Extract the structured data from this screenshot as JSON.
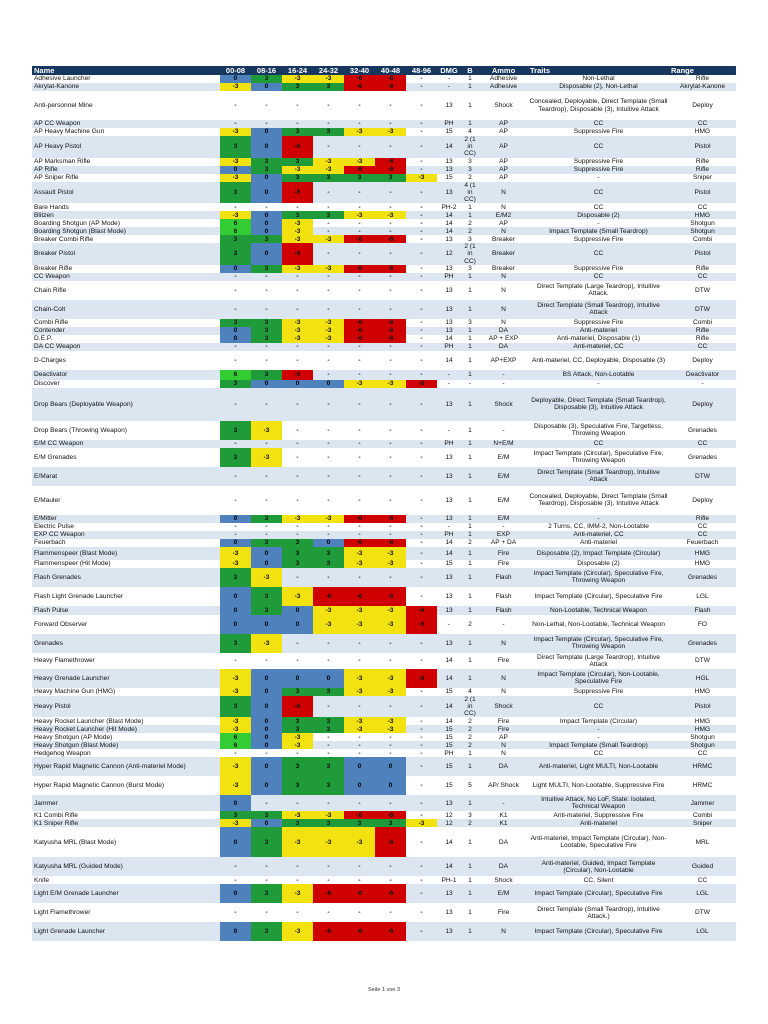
{
  "columns": [
    "Name",
    "00-08",
    "08-16",
    "16-24",
    "24-32",
    "32-40",
    "40-48",
    "48-96",
    "DMG",
    "B",
    "Ammo",
    "Traits",
    "Range"
  ],
  "colors": {
    "b": "#4f81bd",
    "g": "#1f9b3a",
    "lg": "#33cc33",
    "y": "#f2e20f",
    "r": "#d00000",
    "header": "#17375e",
    "alt": "#dce6f1"
  },
  "rows": [
    {
      "name": "Adhesive Launcher",
      "m": [
        "0",
        "3",
        "-3",
        "-3",
        "-6",
        "-6",
        "-"
      ],
      "dmg": "-",
      "b": "1",
      "ammo": "Adhesive",
      "traits": "Non-Lethal",
      "range": "Rifle"
    },
    {
      "name": "Akrylat-Kanone",
      "m": [
        "-3",
        "0",
        "3",
        "3",
        "-6",
        "-6",
        "-"
      ],
      "dmg": "-",
      "b": "1",
      "ammo": "Adhesive",
      "traits": "Disposable (2), Non-Lethal",
      "range": "Akrylat-Kanone"
    },
    {
      "name": "Anti-personnel Mine",
      "m": [
        "-",
        "-",
        "-",
        "-",
        "-",
        "-",
        "-"
      ],
      "dmg": "13",
      "b": "1",
      "ammo": "Shock",
      "traits": "Concealed, Deployable, Direct Template (Small Teardrop), Disposable (3), Intuitive Attack",
      "range": "Deploy"
    },
    {
      "name": "AP CC Weapon",
      "m": [
        "-",
        "-",
        "-",
        "-",
        "-",
        "-",
        "-"
      ],
      "dmg": "PH",
      "b": "1",
      "ammo": "AP",
      "traits": "CC",
      "range": "CC"
    },
    {
      "name": "AP Heavy Machine Gun",
      "m": [
        "-3",
        "0",
        "3",
        "3",
        "-3",
        "-3",
        "-"
      ],
      "dmg": "15",
      "b": "4",
      "ammo": "AP",
      "traits": "Suppressive Fire",
      "range": "HMG"
    },
    {
      "name": "AP Heavy Pistol",
      "m": [
        "3",
        "0",
        "-6",
        "-",
        "-",
        "-",
        "-"
      ],
      "dmg": "14",
      "b": "2 (1 in CC)",
      "ammo": "AP",
      "traits": "CC",
      "range": "Pistol"
    },
    {
      "name": "AP Marksman Rifle",
      "m": [
        "-3",
        "3",
        "3",
        "-3",
        "-3",
        "-6",
        "-"
      ],
      "dmg": "13",
      "b": "3",
      "ammo": "AP",
      "traits": "Suppressive Fire",
      "range": "Rifle"
    },
    {
      "name": "AP Rifle",
      "m": [
        "0",
        "3",
        "-3",
        "-3",
        "-6",
        "-6",
        "-"
      ],
      "dmg": "13",
      "b": "3",
      "ammo": "AP",
      "traits": "Suppressive Fire",
      "range": "Rifle"
    },
    {
      "name": "AP Sniper Rifle",
      "m": [
        "-3",
        "0",
        "3",
        "3",
        "3",
        "3",
        "-3"
      ],
      "dmg": "15",
      "b": "2",
      "ammo": "AP",
      "traits": "-",
      "range": "Sniper"
    },
    {
      "name": "Assault Pistol",
      "m": [
        "3",
        "0",
        "-6",
        "-",
        "-",
        "-",
        "-"
      ],
      "dmg": "13",
      "b": "4 (1 in CC)",
      "ammo": "N",
      "traits": "CC",
      "range": "Pistol"
    },
    {
      "name": "Bare Hands",
      "m": [
        "-",
        "-",
        "-",
        "-",
        "-",
        "-",
        "-"
      ],
      "dmg": "PH-2",
      "b": "1",
      "ammo": "N",
      "traits": "CC",
      "range": "CC"
    },
    {
      "name": "Blitzen",
      "m": [
        "-3",
        "0",
        "3",
        "3",
        "-3",
        "-3",
        "-"
      ],
      "dmg": "14",
      "b": "1",
      "ammo": "E/M2",
      "traits": "Disposable (2)",
      "range": "HMG"
    },
    {
      "name": "Boarding Shotgun (AP Mode)",
      "m": [
        "6",
        "0",
        "-3",
        "-",
        "-",
        "-",
        "-"
      ],
      "dmg": "14",
      "b": "2",
      "ammo": "AP",
      "traits": "-",
      "range": "Shotgun"
    },
    {
      "name": "Boarding Shotgun (Blast Mode)",
      "m": [
        "6",
        "0",
        "-3",
        "-",
        "-",
        "-",
        "-"
      ],
      "dmg": "14",
      "b": "2",
      "ammo": "N",
      "traits": "Impact Template (Small Teardrop)",
      "range": "Shotgun"
    },
    {
      "name": "Breaker Combi Rifle",
      "m": [
        "3",
        "3",
        "-3",
        "-3",
        "-6",
        "-6",
        "-"
      ],
      "dmg": "13",
      "b": "3",
      "ammo": "Breaker",
      "traits": "Suppressive Fire",
      "range": "Combi"
    },
    {
      "name": "Breaker Pistol",
      "m": [
        "3",
        "0",
        "-6",
        "-",
        "-",
        "-",
        "-"
      ],
      "dmg": "12",
      "b": "2 (1 in CC)",
      "ammo": "Breaker",
      "traits": "CC",
      "range": "Pistol"
    },
    {
      "name": "Breaker Rifle",
      "m": [
        "0",
        "3",
        "-3",
        "-3",
        "-6",
        "-6",
        "-"
      ],
      "dmg": "13",
      "b": "3",
      "ammo": "Breaker",
      "traits": "Suppressive Fire",
      "range": "Rifle"
    },
    {
      "name": "CC Weapon",
      "m": [
        "-",
        "-",
        "-",
        "-",
        "-",
        "-",
        "-"
      ],
      "dmg": "PH",
      "b": "1",
      "ammo": "N",
      "traits": "CC",
      "range": "CC"
    },
    {
      "name": "Chain Rifle",
      "m": [
        "-",
        "-",
        "-",
        "-",
        "-",
        "-",
        "-"
      ],
      "dmg": "13",
      "b": "1",
      "ammo": "N",
      "traits": "Direct Template (Large Teardrop), Intuitive Attack.",
      "range": "DTW"
    },
    {
      "name": "Chain-Colt",
      "m": [
        "-",
        "-",
        "-",
        "-",
        "-",
        "-",
        "-"
      ],
      "dmg": "13",
      "b": "1",
      "ammo": "N",
      "traits": "Direct Template (Small Teardrop), Intuitive Attack",
      "range": "DTW"
    },
    {
      "name": "Combi Rifle",
      "m": [
        "3",
        "3",
        "-3",
        "-3",
        "-6",
        "-6",
        "-"
      ],
      "dmg": "13",
      "b": "3",
      "ammo": "N",
      "traits": "Suppressive Fire",
      "range": "Combi"
    },
    {
      "name": "Contender",
      "m": [
        "0",
        "3",
        "-3",
        "-3",
        "-6",
        "-6",
        "-"
      ],
      "dmg": "13",
      "b": "1",
      "ammo": "DA",
      "traits": "Anti-materiel",
      "range": "Rifle"
    },
    {
      "name": "D.E.P.",
      "m": [
        "0",
        "3",
        "-3",
        "-3",
        "-6",
        "-6",
        "-"
      ],
      "dmg": "14",
      "b": "1",
      "ammo": "AP + EXP",
      "traits": "Anti-materiel, Disposable (1)",
      "range": "Rifle"
    },
    {
      "name": "DA CC Weapon",
      "m": [
        "-",
        "-",
        "-",
        "-",
        "-",
        "-",
        "-"
      ],
      "dmg": "PH",
      "b": "1",
      "ammo": "DA",
      "traits": "Anti-materiel, CC",
      "range": "CC"
    },
    {
      "name": "D-Charges",
      "m": [
        "-",
        "-",
        "-",
        "-",
        "-",
        "-",
        "-"
      ],
      "dmg": "14",
      "b": "1",
      "ammo": "AP+EXP",
      "traits": "Anti-materiel, CC, Deployable, Disposable (3)",
      "range": "Deploy"
    },
    {
      "name": "Deactivator",
      "m": [
        "6",
        "3",
        "-6",
        "-",
        "-",
        "-",
        "-"
      ],
      "dmg": "-",
      "b": "1",
      "ammo": "-",
      "traits": "BS Attack, Non-Lootable",
      "range": "Deactivator"
    },
    {
      "name": "Discover",
      "m": [
        "3",
        "0",
        "0",
        "0",
        "-3",
        "-3",
        "-6"
      ],
      "dmg": "-",
      "b": "-",
      "ammo": "-",
      "traits": "-",
      "range": "-"
    },
    {
      "name": "Drop Bears (Deployable Weapon)",
      "m": [
        "-",
        "-",
        "-",
        "-",
        "-",
        "-",
        "-"
      ],
      "dmg": "13",
      "b": "1",
      "ammo": "Shock",
      "traits": "Deployable, Direct Template (Small Teardrop), Disposable (3), Intuitive Attack",
      "range": "Deploy"
    },
    {
      "name": "Drop Bears (Throwing Weapon)",
      "m": [
        "3",
        "-3",
        "-",
        "-",
        "-",
        "-",
        "-"
      ],
      "dmg": "-",
      "b": "1",
      "ammo": "-",
      "traits": "Disposable (3), Speculative Fire, Targetless, Throwing Weapon",
      "range": "Grenades"
    },
    {
      "name": "E/M CC Weapon",
      "m": [
        "-",
        "-",
        "-",
        "-",
        "-",
        "-",
        "-"
      ],
      "dmg": "PH",
      "b": "1",
      "ammo": "N+E/M",
      "traits": "CC",
      "range": "CC"
    },
    {
      "name": "E/M Grenades",
      "m": [
        "3",
        "-3",
        "-",
        "-",
        "-",
        "-",
        "-"
      ],
      "dmg": "13",
      "b": "1",
      "ammo": "E/M",
      "traits": "Impact Template (Circular), Speculative Fire, Throwing Weapon",
      "range": "Grenades"
    },
    {
      "name": "E/Marat",
      "m": [
        "-",
        "-",
        "-",
        "-",
        "-",
        "-",
        "-"
      ],
      "dmg": "13",
      "b": "1",
      "ammo": "E/M",
      "traits": "Direct Template (Small Teardrop), Intuitive Attack",
      "range": "DTW"
    },
    {
      "name": "E/Mauler",
      "m": [
        "-",
        "-",
        "-",
        "-",
        "-",
        "-",
        "-"
      ],
      "dmg": "13",
      "b": "1",
      "ammo": "E/M",
      "traits": "Concealed, Deployable, Direct Template (Small Teardrop), Disposable (3), Intuitive Attack",
      "range": "Deploy"
    },
    {
      "name": "E/Mitter",
      "m": [
        "0",
        "3",
        "-3",
        "-3",
        "-6",
        "-6",
        "-"
      ],
      "dmg": "13",
      "b": "1",
      "ammo": "E/M",
      "traits": "-",
      "range": "Rifle"
    },
    {
      "name": "Electric Pulse",
      "m": [
        "-",
        "-",
        "-",
        "-",
        "-",
        "-",
        "-"
      ],
      "dmg": "-",
      "b": "1",
      "ammo": "-",
      "traits": "2 Turns, CC, IMM-2, Non-Lootable",
      "range": "CC"
    },
    {
      "name": "EXP CC Weapon",
      "m": [
        "-",
        "-",
        "-",
        "-",
        "-",
        "-",
        "-"
      ],
      "dmg": "PH",
      "b": "1",
      "ammo": "EXP",
      "traits": "Anti-materiel, CC",
      "range": "CC"
    },
    {
      "name": "Feuerbach",
      "m": [
        "0",
        "3",
        "3",
        "0",
        "-6",
        "-6",
        "-"
      ],
      "dmg": "14",
      "b": "2",
      "ammo": "AP + DA",
      "traits": "Anti-materiel",
      "range": "Feuerbach"
    },
    {
      "name": "Flammenspeer (Blast Mode)",
      "m": [
        "-3",
        "0",
        "3",
        "3",
        "-3",
        "-3",
        "-"
      ],
      "dmg": "14",
      "b": "1",
      "ammo": "Fire",
      "traits": "Disposable (2), Impact Template (Circular)",
      "range": "HMG"
    },
    {
      "name": "Flammenspeer (Hit Mode)",
      "m": [
        "-3",
        "0",
        "3",
        "3",
        "-3",
        "-3",
        "-"
      ],
      "dmg": "15",
      "b": "1",
      "ammo": "Fire",
      "traits": "Disposable (2)",
      "range": "HMG"
    },
    {
      "name": "Flash Grenades",
      "m": [
        "3",
        "-3",
        "-",
        "-",
        "-",
        "-",
        "-"
      ],
      "dmg": "13",
      "b": "1",
      "ammo": "Flash",
      "traits": "Impact Template (Circular), Speculative Fire, Throwing Weapon",
      "range": "Grenades"
    },
    {
      "name": "Flash Light Grenade Launcher",
      "m": [
        "0",
        "3",
        "-3",
        "-6",
        "-6",
        "-6",
        "-"
      ],
      "dmg": "13",
      "b": "1",
      "ammo": "Flash",
      "traits": "Impact Template (Circular), Speculative Fire",
      "range": "LGL"
    },
    {
      "name": "Flash Pulse",
      "m": [
        "0",
        "3",
        "0",
        "-3",
        "-3",
        "-3",
        "-6"
      ],
      "dmg": "13",
      "b": "1",
      "ammo": "Flash",
      "traits": "Non-Lootable, Technical Weapon",
      "range": "Flash"
    },
    {
      "name": "Forward Observer",
      "m": [
        "0",
        "0",
        "0",
        "-3",
        "-3",
        "-3",
        "-6"
      ],
      "dmg": "-",
      "b": "2",
      "ammo": "-",
      "traits": "Non-Lethal, Non-Lootable, Technical Weapon",
      "range": "FO"
    },
    {
      "name": "Grenades",
      "m": [
        "3",
        "-3",
        "-",
        "-",
        "-",
        "-",
        "-"
      ],
      "dmg": "13",
      "b": "1",
      "ammo": "N",
      "traits": "Impact Template (Circular), Speculative Fire, Throwing Weapon",
      "range": "Grenades"
    },
    {
      "name": "Heavy Flamethrower",
      "m": [
        "-",
        "-",
        "-",
        "-",
        "-",
        "-",
        "-"
      ],
      "dmg": "14",
      "b": "1",
      "ammo": "Fire",
      "traits": "Direct Template (Large Teardrop), Intuitive Attack",
      "range": "DTW"
    },
    {
      "name": "Heavy Grenade Launcher",
      "m": [
        "-3",
        "0",
        "0",
        "0",
        "-3",
        "-3",
        "-6"
      ],
      "dmg": "14",
      "b": "1",
      "ammo": "N",
      "traits": "Impact Template (Circular), Non-Lootable, Speculative Fire",
      "range": "HGL"
    },
    {
      "name": "Heavy Machine Gun (HMG)",
      "m": [
        "-3",
        "0",
        "3",
        "3",
        "-3",
        "-3",
        "-"
      ],
      "dmg": "15",
      "b": "4",
      "ammo": "N",
      "traits": "Suppressive Fire",
      "range": "HMG"
    },
    {
      "name": "Heavy Pistol",
      "m": [
        "3",
        "0",
        "-6",
        "-",
        "-",
        "-",
        "-"
      ],
      "dmg": "14",
      "b": "2 (1 in CC)",
      "ammo": "Shock",
      "traits": "CC",
      "range": "Pistol"
    },
    {
      "name": "Heavy Rocket Launcher (Blast Mode)",
      "m": [
        "-3",
        "0",
        "3",
        "3",
        "-3",
        "-3",
        "-"
      ],
      "dmg": "14",
      "b": "2",
      "ammo": "Fire",
      "traits": "Impact Template (Circular)",
      "range": "HMG"
    },
    {
      "name": "Heavy Rocket Launcher (Hit Mode)",
      "m": [
        "-3",
        "0",
        "3",
        "3",
        "-3",
        "-3",
        "-"
      ],
      "dmg": "15",
      "b": "2",
      "ammo": "Fire",
      "traits": "-",
      "range": "HMG"
    },
    {
      "name": "Heavy Shotgun (AP Mode)",
      "m": [
        "6",
        "0",
        "-3",
        "-",
        "-",
        "-",
        "-"
      ],
      "dmg": "15",
      "b": "2",
      "ammo": "AP",
      "traits": "-",
      "range": "Shotgun"
    },
    {
      "name": "Heavy Shotgun (Blast Mode)",
      "m": [
        "6",
        "0",
        "-3",
        "-",
        "-",
        "-",
        "-"
      ],
      "dmg": "15",
      "b": "2",
      "ammo": "N",
      "traits": "Impact Template (Small Teardrop)",
      "range": "Shotgun"
    },
    {
      "name": "Hedgehog Weapon",
      "m": [
        "-",
        "-",
        "-",
        "-",
        "-",
        "-",
        "-"
      ],
      "dmg": "PH",
      "b": "1",
      "ammo": "N",
      "traits": "CC",
      "range": "CC"
    },
    {
      "name": "Hyper Rapid Magnetic Cannon (Anti-materiel Mode)",
      "m": [
        "-3",
        "0",
        "3",
        "3",
        "0",
        "0",
        "-"
      ],
      "dmg": "15",
      "b": "1",
      "ammo": "DA",
      "traits": "Anti-materiel, Light MULTI, Non-Lootable",
      "range": "HRMC"
    },
    {
      "name": "Hyper Rapid Magnetic Cannon (Burst Mode)",
      "m": [
        "-3",
        "0",
        "3",
        "3",
        "0",
        "0",
        "-"
      ],
      "dmg": "15",
      "b": "5",
      "ammo": "AP/ Shock",
      "traits": "Light MULTI, Non-Lootable, Suppressive Fire",
      "range": "HRMC"
    },
    {
      "name": "Jammer",
      "m": [
        "0",
        "-",
        "-",
        "-",
        "-",
        "-",
        "-"
      ],
      "dmg": "13",
      "b": "1",
      "ammo": "-",
      "traits": "Intuitive Attack, No LoF, State: Isolated, Technical Weapon",
      "range": "Jammer"
    },
    {
      "name": "K1 Combi Rifle",
      "m": [
        "3",
        "3",
        "-3",
        "-3",
        "-6",
        "-6",
        "-"
      ],
      "dmg": "12",
      "b": "3",
      "ammo": "K1",
      "traits": "Anti-materiel, Suppressive Fire",
      "range": "Combi"
    },
    {
      "name": "K1 Sniper Rifle",
      "m": [
        "-3",
        "0",
        "3",
        "3",
        "3",
        "3",
        "-3"
      ],
      "dmg": "12",
      "b": "2",
      "ammo": "K1",
      "traits": "Anti-materiel",
      "range": "Sniper"
    },
    {
      "name": "Katyusha MRL (Blast Mode)",
      "m": [
        "0",
        "3",
        "-3",
        "-3",
        "-3",
        "-6",
        "-"
      ],
      "dmg": "14",
      "b": "1",
      "ammo": "DA",
      "traits": "Anti-materiel, Impact Template (Circular), Non-Lootable, Speculative Fire",
      "range": "MRL"
    },
    {
      "name": "Katyusha MRL (Guided Mode)",
      "m": [
        "-",
        "-",
        "-",
        "-",
        "-",
        "-",
        "-"
      ],
      "dmg": "14",
      "b": "1",
      "ammo": "DA",
      "traits": "Anti-materiel, Guided, Impact Template (Circular), Non-Lootable",
      "range": "Guided"
    },
    {
      "name": "Knife",
      "m": [
        "-",
        "-",
        "-",
        "-",
        "-",
        "-",
        "-"
      ],
      "dmg": "PH-1",
      "b": "1",
      "ammo": "Shock",
      "traits": "CC, Silent",
      "range": "CC"
    },
    {
      "name": "Light E/M Grenade Launcher",
      "m": [
        "0",
        "3",
        "-3",
        "-6",
        "-6",
        "-6",
        "-"
      ],
      "dmg": "13",
      "b": "1",
      "ammo": "E/M",
      "traits": "Impact Template (Circular), Speculative Fire",
      "range": "LGL"
    },
    {
      "name": "Light Flamethrower",
      "m": [
        "-",
        "-",
        "-",
        "-",
        "-",
        "-",
        "-"
      ],
      "dmg": "13",
      "b": "1",
      "ammo": "Fire",
      "traits": "Direct Template (Small Teardrop), Intuitive Attack.)",
      "range": "DTW"
    },
    {
      "name": "Light Grenade Launcher",
      "m": [
        "0",
        "3",
        "-3",
        "-6",
        "-6",
        "-6",
        "-"
      ],
      "dmg": "13",
      "b": "1",
      "ammo": "N",
      "traits": "Impact Template (Circular), Speculative Fire",
      "range": "LGL"
    }
  ],
  "footer": "Seite 1 von 3"
}
